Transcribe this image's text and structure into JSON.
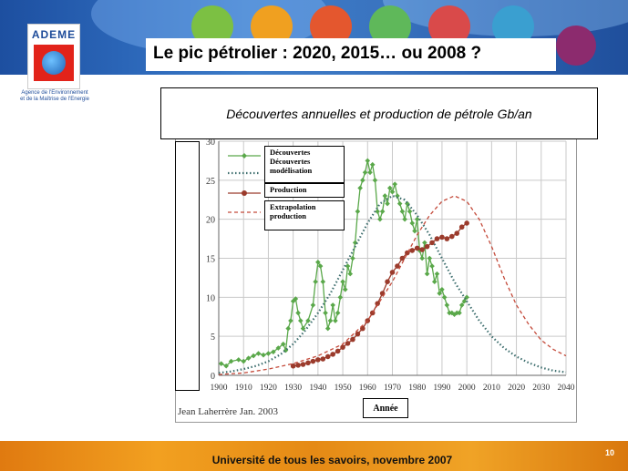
{
  "slide": {
    "title": "Le pic pétrolier : 2020, 2015… ou 2008 ?",
    "logo_text": "ADEME",
    "agency_lines": [
      "Agence de l'Environnement",
      "et de la Maîtrise de l'Energie"
    ],
    "footer": "Université de tous les savoirs, novembre 2007",
    "page_number": "10",
    "credit": "Jean Laherrère Jan. 2003"
  },
  "colors": {
    "discoveries": "#5aa84a",
    "discoveries_model": "#3d6e6e",
    "production": "#9b3b2c",
    "production_extrapolation": "#c44a3a",
    "grid": "#c9c9c9"
  },
  "chart_data": {
    "type": "line",
    "title": "Découvertes annuelles et production de pétrole Gb/an",
    "xlabel": "Année",
    "ylabel": "",
    "xlim": [
      1900,
      2040
    ],
    "ylim": [
      0,
      30
    ],
    "xticks": [
      "1900",
      "1910",
      "1920",
      "1930",
      "1940",
      "1950",
      "1960",
      "1970",
      "1980",
      "1990",
      "2000",
      "2010",
      "2020",
      "2030",
      "2040"
    ],
    "yticks": [
      "0",
      "5",
      "10",
      "15",
      "20",
      "25",
      "30"
    ],
    "grid": true,
    "legend_position": "top-left",
    "series": [
      {
        "name": "Découvertes",
        "style": "solid-diamond",
        "x": [
          1901,
          1903,
          1905,
          1908,
          1910,
          1912,
          1914,
          1916,
          1918,
          1920,
          1922,
          1924,
          1926,
          1927,
          1928,
          1929,
          1930,
          1931,
          1932,
          1933,
          1934,
          1936,
          1938,
          1939,
          1940,
          1941,
          1942,
          1943,
          1944,
          1945,
          1946,
          1947,
          1948,
          1949,
          1950,
          1951,
          1952,
          1953,
          1954,
          1955,
          1956,
          1957,
          1958,
          1959,
          1960,
          1961,
          1962,
          1963,
          1964,
          1965,
          1966,
          1967,
          1968,
          1969,
          1970,
          1971,
          1972,
          1973,
          1974,
          1975,
          1976,
          1977,
          1978,
          1979,
          1980,
          1981,
          1982,
          1983,
          1984,
          1985,
          1986,
          1987,
          1988,
          1989,
          1990,
          1991,
          1992,
          1993,
          1994,
          1995,
          1996,
          1997,
          1998,
          1999,
          2000
        ],
        "y": [
          1.5,
          1.2,
          1.8,
          2,
          1.8,
          2.2,
          2.5,
          2.8,
          2.6,
          2.8,
          3,
          3.5,
          4,
          3.2,
          6,
          7,
          9.5,
          9.8,
          8,
          7,
          6,
          7,
          9,
          12,
          14.5,
          14,
          12,
          8,
          6,
          7,
          9,
          7,
          8,
          10,
          12,
          11,
          14,
          13,
          15,
          17,
          21,
          24,
          25,
          26,
          27.5,
          26,
          27,
          25,
          21,
          20,
          21,
          23,
          22,
          24,
          23.5,
          24.5,
          23,
          22,
          21,
          20,
          22,
          21,
          19.5,
          18.5,
          20,
          16,
          15,
          17,
          13,
          15,
          14,
          12,
          13,
          10.5,
          11,
          10,
          9,
          8,
          8,
          7.8,
          8,
          8,
          9,
          9.5,
          10
        ]
      },
      {
        "name": "Découvertes modélisation",
        "style": "dotted",
        "x": [
          1900,
          1905,
          1910,
          1915,
          1920,
          1925,
          1930,
          1935,
          1940,
          1945,
          1950,
          1955,
          1960,
          1965,
          1970,
          1975,
          1980,
          1985,
          1990,
          1995,
          2000,
          2005,
          2010,
          2015,
          2020,
          2025,
          2030,
          2035,
          2040
        ],
        "y": [
          0.3,
          0.5,
          0.8,
          1.2,
          1.8,
          2.7,
          4,
          5.8,
          8,
          10.5,
          13.5,
          16.5,
          19.5,
          22,
          23,
          22.5,
          20.5,
          18,
          15,
          12,
          9.5,
          7,
          5,
          3.5,
          2.4,
          1.6,
          1,
          0.6,
          0.4
        ]
      },
      {
        "name": "Production",
        "style": "solid-circle",
        "x": [
          1930,
          1932,
          1934,
          1936,
          1938,
          1940,
          1942,
          1944,
          1946,
          1948,
          1950,
          1952,
          1954,
          1956,
          1958,
          1960,
          1962,
          1964,
          1966,
          1968,
          1970,
          1972,
          1974,
          1976,
          1978,
          1980,
          1982,
          1984,
          1986,
          1988,
          1990,
          1992,
          1994,
          1996,
          1998,
          2000
        ],
        "y": [
          1.2,
          1.3,
          1.4,
          1.6,
          1.8,
          2,
          2.1,
          2.4,
          2.7,
          3.1,
          3.6,
          4.1,
          4.6,
          5.3,
          6,
          7,
          8,
          9.2,
          10.5,
          12,
          13.2,
          14,
          15,
          15.7,
          16,
          16.3,
          16.1,
          16.5,
          17,
          17.5,
          17.7,
          17.5,
          17.8,
          18.2,
          19,
          19.5
        ]
      },
      {
        "name": "Extrapolation production",
        "style": "dashed",
        "x": [
          1900,
          1910,
          1920,
          1930,
          1940,
          1950,
          1960,
          1965,
          1970,
          1975,
          1980,
          1985,
          1990,
          1995,
          2000,
          2005,
          2010,
          2015,
          2020,
          2025,
          2030,
          2035,
          2040
        ],
        "y": [
          0.1,
          0.3,
          0.8,
          1.5,
          2.5,
          4,
          7,
          9.5,
          12,
          15,
          18,
          20.5,
          22.3,
          23,
          22.3,
          20,
          16.5,
          12.5,
          9,
          6.5,
          4.5,
          3.3,
          2.5
        ]
      }
    ]
  }
}
